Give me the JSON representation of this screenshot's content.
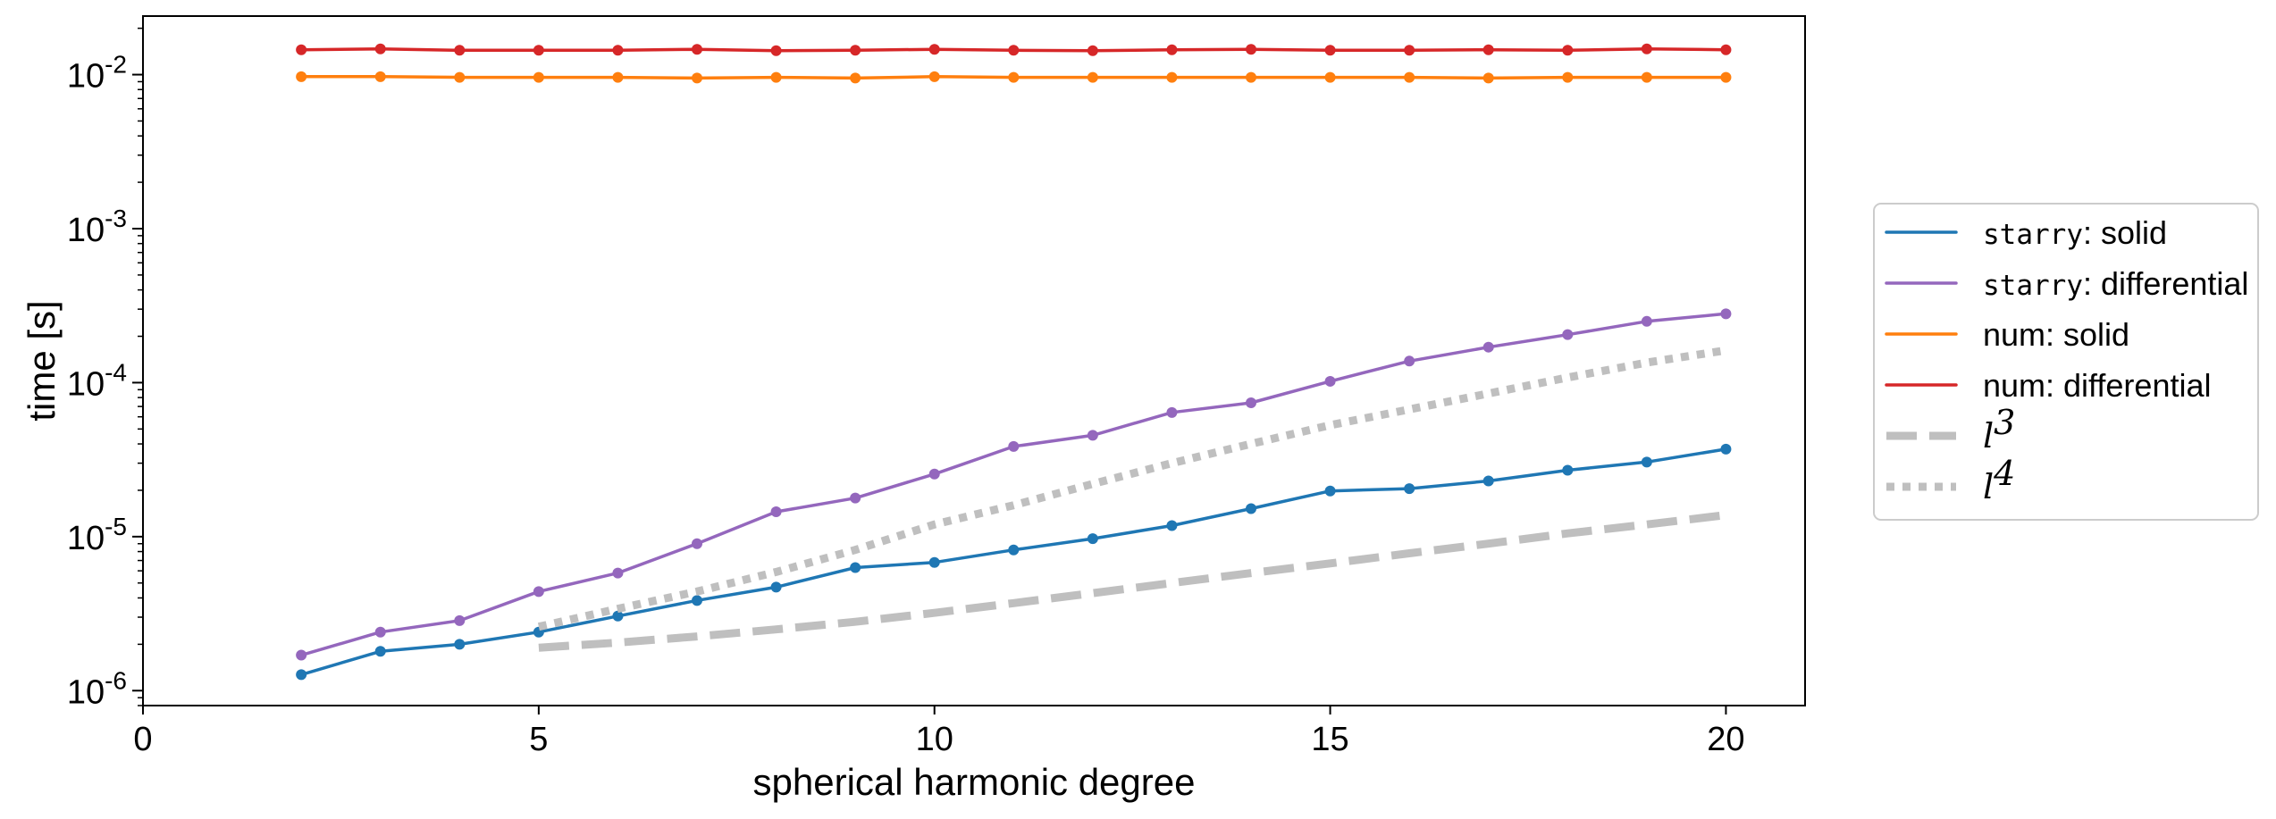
{
  "chart_data": {
    "type": "line",
    "title": "",
    "xlabel": "spherical harmonic degree",
    "ylabel": "time [s]",
    "xlim": [
      0,
      21
    ],
    "ylim": [
      8e-07,
      0.024
    ],
    "yscale": "log",
    "xticks": [
      0,
      5,
      10,
      15,
      20
    ],
    "xtick_labels": [
      "0",
      "5",
      "10",
      "15",
      "20"
    ],
    "yticks": [
      1e-06,
      1e-05,
      0.0001,
      0.001,
      0.01
    ],
    "ytick_labels": [
      {
        "base": "10",
        "exp": "-6"
      },
      {
        "base": "10",
        "exp": "-5"
      },
      {
        "base": "10",
        "exp": "-4"
      },
      {
        "base": "10",
        "exp": "-3"
      },
      {
        "base": "10",
        "exp": "-2"
      }
    ],
    "grid": false,
    "legend_position": "outside-right",
    "series": [
      {
        "key": "starry_solid",
        "label_mono": "starry",
        "label_rest": ": solid",
        "color": "#1f77b4",
        "style": "solid-markers",
        "x": [
          2,
          3,
          4,
          5,
          6,
          7,
          8,
          9,
          10,
          11,
          12,
          13,
          14,
          15,
          16,
          17,
          18,
          19,
          20
        ],
        "y": [
          1.27e-06,
          1.8e-06,
          2e-06,
          2.4e-06,
          3.05e-06,
          3.85e-06,
          4.7e-06,
          6.3e-06,
          6.8e-06,
          8.2e-06,
          9.7e-06,
          1.18e-05,
          1.52e-05,
          1.98e-05,
          2.05e-05,
          2.3e-05,
          2.7e-05,
          3.05e-05,
          3.7e-05
        ]
      },
      {
        "key": "starry_differential",
        "label_mono": "starry",
        "label_rest": ": differential",
        "color": "#9467bd",
        "style": "solid-markers",
        "x": [
          2,
          3,
          4,
          5,
          6,
          7,
          8,
          9,
          10,
          11,
          12,
          13,
          14,
          15,
          16,
          17,
          18,
          19,
          20
        ],
        "y": [
          1.7e-06,
          2.4e-06,
          2.85e-06,
          4.4e-06,
          5.8e-06,
          9e-06,
          1.45e-05,
          1.78e-05,
          2.55e-05,
          3.85e-05,
          4.55e-05,
          6.4e-05,
          7.4e-05,
          0.000102,
          0.000138,
          0.00017,
          0.000205,
          0.00025,
          0.00028
        ]
      },
      {
        "key": "num_solid",
        "label_mono": "",
        "label_rest": "num: solid",
        "color": "#ff7f0e",
        "style": "solid-markers",
        "x": [
          2,
          3,
          4,
          5,
          6,
          7,
          8,
          9,
          10,
          11,
          12,
          13,
          14,
          15,
          16,
          17,
          18,
          19,
          20
        ],
        "y": [
          0.0097,
          0.0097,
          0.0096,
          0.0096,
          0.0096,
          0.0095,
          0.0096,
          0.0095,
          0.0097,
          0.0096,
          0.0096,
          0.0096,
          0.0096,
          0.0096,
          0.0096,
          0.0095,
          0.0096,
          0.0096,
          0.0096
        ]
      },
      {
        "key": "num_differential",
        "label_mono": "",
        "label_rest": "num: differential",
        "color": "#d62728",
        "style": "solid-markers",
        "x": [
          2,
          3,
          4,
          5,
          6,
          7,
          8,
          9,
          10,
          11,
          12,
          13,
          14,
          15,
          16,
          17,
          18,
          19,
          20
        ],
        "y": [
          0.0145,
          0.0147,
          0.0144,
          0.0144,
          0.0144,
          0.0146,
          0.0143,
          0.0144,
          0.0146,
          0.0144,
          0.0143,
          0.0145,
          0.0146,
          0.0144,
          0.0144,
          0.0145,
          0.0144,
          0.0147,
          0.0145
        ]
      },
      {
        "key": "l3",
        "label_mono": "",
        "label_math": "l",
        "label_sup": "3",
        "label_rest": "",
        "color": "#bfbfbf",
        "style": "dashed",
        "x": [
          5,
          6,
          7,
          8,
          9,
          10,
          11,
          12,
          13,
          14,
          15,
          16,
          17,
          18,
          19,
          20
        ],
        "y": [
          1.9e-06,
          2.05e-06,
          2.25e-06,
          2.5e-06,
          2.8e-06,
          3.2e-06,
          3.7e-06,
          4.3e-06,
          5e-06,
          5.8e-06,
          6.7e-06,
          7.8e-06,
          9e-06,
          1.05e-05,
          1.2e-05,
          1.38e-05
        ]
      },
      {
        "key": "l4",
        "label_mono": "",
        "label_math": "l",
        "label_sup": "4",
        "label_rest": "",
        "color": "#bfbfbf",
        "style": "dotted",
        "x": [
          5,
          6,
          7,
          8,
          9,
          10,
          11,
          12,
          13,
          14,
          15,
          16,
          17,
          18,
          19,
          20
        ],
        "y": [
          2.6e-06,
          3.4e-06,
          4.4e-06,
          5.9e-06,
          8.2e-06,
          1.2e-05,
          1.6e-05,
          2.2e-05,
          3e-05,
          4e-05,
          5.3e-05,
          6.7e-05,
          8.5e-05,
          0.000108,
          0.000135,
          0.000162
        ]
      }
    ]
  }
}
